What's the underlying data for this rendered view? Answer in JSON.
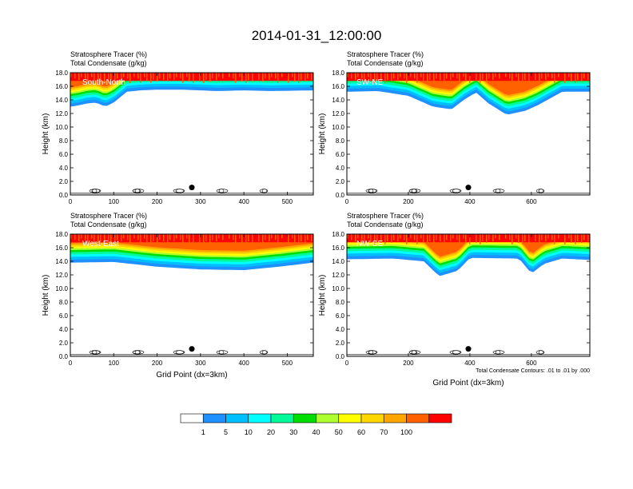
{
  "title": "2014-01-31_12:00:00",
  "chart_data": [
    {
      "type": "heatmap",
      "title": "Stratosphere Tracer   (%)",
      "subtitle": "Total Condensate   (g/kg)",
      "panel_label": "South-North",
      "ylabel": "Height (km)",
      "xlabel": "",
      "xlim": [
        0,
        560
      ],
      "ylim": [
        0,
        18
      ],
      "xticks": [
        "0",
        "100",
        "200",
        "300",
        "400",
        "500"
      ],
      "xtick_values": [
        0,
        100,
        200,
        300,
        400,
        500
      ],
      "yticks": [
        "0.0",
        "2.0",
        "4.0",
        "6.0",
        "8.0",
        "10.0",
        "12.0",
        "14.0",
        "16.0",
        "18.0"
      ],
      "tracer_base_profile": [
        [
          0,
          13.0
        ],
        [
          20,
          13.2
        ],
        [
          40,
          13.5
        ],
        [
          60,
          13.6
        ],
        [
          80,
          13.0
        ],
        [
          100,
          13.6
        ],
        [
          130,
          15.2
        ],
        [
          160,
          15.4
        ],
        [
          200,
          15.5
        ],
        [
          260,
          15.5
        ],
        [
          300,
          15.4
        ],
        [
          340,
          15.3
        ],
        [
          400,
          15.4
        ],
        [
          460,
          15.3
        ],
        [
          560,
          15.4
        ]
      ],
      "tracer_top_band": [
        [
          0,
          18.0
        ],
        [
          560,
          18.0
        ]
      ],
      "marker": [
        280,
        1.1
      ]
    },
    {
      "type": "heatmap",
      "title": "Stratosphere Tracer   (%)",
      "subtitle": "Total Condensate   (g/kg)",
      "panel_label": "SW-NE",
      "ylabel": "Height (km)",
      "xlabel": "",
      "xlim": [
        0,
        790
      ],
      "ylim": [
        0,
        18
      ],
      "xticks": [
        "0",
        "200",
        "400",
        "600"
      ],
      "xtick_values": [
        0,
        200,
        400,
        600
      ],
      "yticks": [
        "0.0",
        "2.0",
        "4.0",
        "6.0",
        "8.0",
        "10.0",
        "12.0",
        "14.0",
        "16.0",
        "18.0"
      ],
      "tracer_base_profile": [
        [
          0,
          15.2
        ],
        [
          100,
          15.3
        ],
        [
          200,
          14.6
        ],
        [
          280,
          13.0
        ],
        [
          340,
          12.6
        ],
        [
          380,
          14.0
        ],
        [
          420,
          15.1
        ],
        [
          460,
          13.5
        ],
        [
          520,
          11.8
        ],
        [
          580,
          12.4
        ],
        [
          620,
          13.2
        ],
        [
          700,
          15.2
        ],
        [
          790,
          15.2
        ]
      ],
      "marker": [
        395,
        1.1
      ]
    },
    {
      "type": "heatmap",
      "title": "Stratosphere Tracer   (%)",
      "subtitle": "Total Condensate   (g/kg)",
      "panel_label": "West-East",
      "ylabel": "Height (km)",
      "xlabel": "Grid Point (dx=3km)",
      "xlim": [
        0,
        560
      ],
      "ylim": [
        0,
        18
      ],
      "xticks": [
        "0",
        "100",
        "200",
        "300",
        "400",
        "500"
      ],
      "xtick_values": [
        0,
        100,
        200,
        300,
        400,
        500
      ],
      "yticks": [
        "0.0",
        "2.0",
        "4.0",
        "6.0",
        "8.0",
        "10.0",
        "12.0",
        "14.0",
        "16.0",
        "18.0"
      ],
      "tracer_base_profile": [
        [
          0,
          13.8
        ],
        [
          100,
          13.9
        ],
        [
          200,
          13.2
        ],
        [
          300,
          12.8
        ],
        [
          400,
          12.7
        ],
        [
          480,
          13.2
        ],
        [
          560,
          13.8
        ]
      ],
      "marker": [
        280,
        1.1
      ]
    },
    {
      "type": "heatmap",
      "title": "Stratosphere Tracer   (%)",
      "subtitle": "Total Condensate   (g/kg)",
      "panel_label": "NW-SE",
      "ylabel": "Height (km)",
      "xlabel": "Grid Point (dx=3km)",
      "xlim": [
        0,
        790
      ],
      "ylim": [
        0,
        18
      ],
      "xticks": [
        "0",
        "200",
        "400",
        "600"
      ],
      "xtick_values": [
        0,
        200,
        400,
        600
      ],
      "yticks": [
        "0.0",
        "2.0",
        "4.0",
        "6.0",
        "8.0",
        "10.0",
        "12.0",
        "14.0",
        "16.0",
        "18.0"
      ],
      "tracer_base_profile": [
        [
          0,
          14.3
        ],
        [
          150,
          14.4
        ],
        [
          250,
          14.0
        ],
        [
          300,
          11.8
        ],
        [
          360,
          12.6
        ],
        [
          400,
          14.5
        ],
        [
          560,
          14.4
        ],
        [
          600,
          12.2
        ],
        [
          640,
          13.6
        ],
        [
          700,
          14.4
        ],
        [
          790,
          14.2
        ]
      ],
      "marker": [
        395,
        1.1
      ],
      "contour_note": "Total Condensate Contours: .01 to .01 by .000"
    }
  ],
  "colorbar": {
    "labels": [
      "1",
      "5",
      "10",
      "20",
      "30",
      "40",
      "50",
      "60",
      "70",
      "100"
    ],
    "colors": [
      "#ffffff",
      "#1e90ff",
      "#00bfff",
      "#00ffff",
      "#00fa9a",
      "#00dd00",
      "#adff2f",
      "#ffff00",
      "#ffd700",
      "#ffa500",
      "#ff6000",
      "#ff0000"
    ]
  }
}
